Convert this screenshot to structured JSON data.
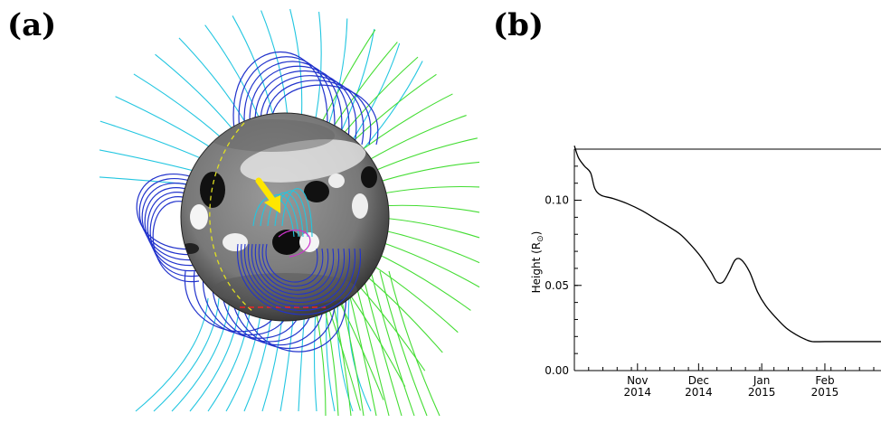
{
  "panels": {
    "a_label": "(a)",
    "b_label": "(b)"
  },
  "colors": {
    "closed_loops": "#2233cc",
    "open_field_south": "#22c6e0",
    "open_field_north": "#44dd33",
    "arrow": "#ffe600",
    "equator_dash": "#e0e020",
    "polar_dash": "#ee2222",
    "pil": "#cc33cc"
  },
  "chart_data": {
    "type": "line",
    "title": "",
    "xlabel": "",
    "ylabel": "Height (R",
    "ylabel_sub": "⊙",
    "ylabel_close": ")",
    "ylim": [
      0.0,
      0.13
    ],
    "xlim": [
      "2014-10-01",
      "2015-03-01"
    ],
    "yticks": [
      {
        "value": 0.0,
        "label": "0.00"
      },
      {
        "value": 0.05,
        "label": "0.05"
      },
      {
        "value": 0.1,
        "label": "0.10"
      }
    ],
    "xticks": [
      {
        "x": "2014-11-01",
        "line1": "Nov",
        "line2": "2014"
      },
      {
        "x": "2014-12-01",
        "line1": "Dec",
        "line2": "2014"
      },
      {
        "x": "2015-01-01",
        "line1": "Jan",
        "line2": "2015"
      },
      {
        "x": "2015-02-01",
        "line1": "Feb",
        "line2": "2015"
      }
    ],
    "series": [
      {
        "color": "#000000",
        "x": [
          "2014-10-01",
          "2014-10-03",
          "2014-10-06",
          "2014-10-09",
          "2014-10-11",
          "2014-10-14",
          "2014-10-20",
          "2014-10-27",
          "2014-11-03",
          "2014-11-10",
          "2014-11-17",
          "2014-11-22",
          "2014-11-27",
          "2014-12-02",
          "2014-12-07",
          "2014-12-10",
          "2014-12-13",
          "2014-12-16",
          "2014-12-19",
          "2014-12-22",
          "2014-12-26",
          "2014-12-30",
          "2015-01-03",
          "2015-01-08",
          "2015-01-13",
          "2015-01-18",
          "2015-01-23",
          "2015-01-26",
          "2015-02-01",
          "2015-02-10",
          "2015-02-20",
          "2015-03-01"
        ],
        "y": [
          0.132,
          0.125,
          0.12,
          0.116,
          0.107,
          0.103,
          0.101,
          0.098,
          0.094,
          0.089,
          0.084,
          0.08,
          0.074,
          0.067,
          0.058,
          0.052,
          0.052,
          0.058,
          0.065,
          0.065,
          0.058,
          0.046,
          0.038,
          0.031,
          0.025,
          0.021,
          0.018,
          0.017,
          0.017,
          0.017,
          0.017,
          0.017
        ]
      }
    ]
  }
}
